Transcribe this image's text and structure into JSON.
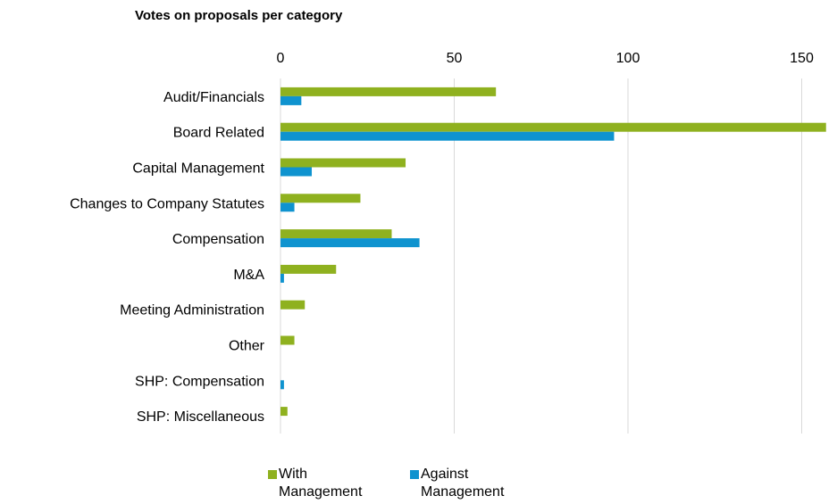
{
  "chart_data": {
    "type": "bar",
    "orientation": "horizontal",
    "title": "Votes on proposals per category",
    "xlabel": "",
    "ylabel": "",
    "xlim": [
      0,
      158
    ],
    "xticks": [
      0,
      50,
      100,
      150
    ],
    "grid": true,
    "legend_position": "bottom",
    "categories": [
      "Audit/Financials",
      "Board Related",
      "Capital Management",
      "Changes to Company Statutes",
      "Compensation",
      "M&A",
      "Meeting Administration",
      "Other",
      "SHP: Compensation",
      "SHP: Miscellaneous"
    ],
    "series": [
      {
        "name": "With Management",
        "label": "With\nManagement",
        "color": "#8FB11F",
        "values": [
          62,
          157,
          36,
          23,
          32,
          16,
          7,
          4,
          0,
          2
        ]
      },
      {
        "name": "Against Management",
        "label": "Against\nManagement",
        "color": "#0F93CF",
        "values": [
          6,
          96,
          9,
          4,
          40,
          1,
          0,
          0,
          1,
          0
        ]
      }
    ]
  }
}
